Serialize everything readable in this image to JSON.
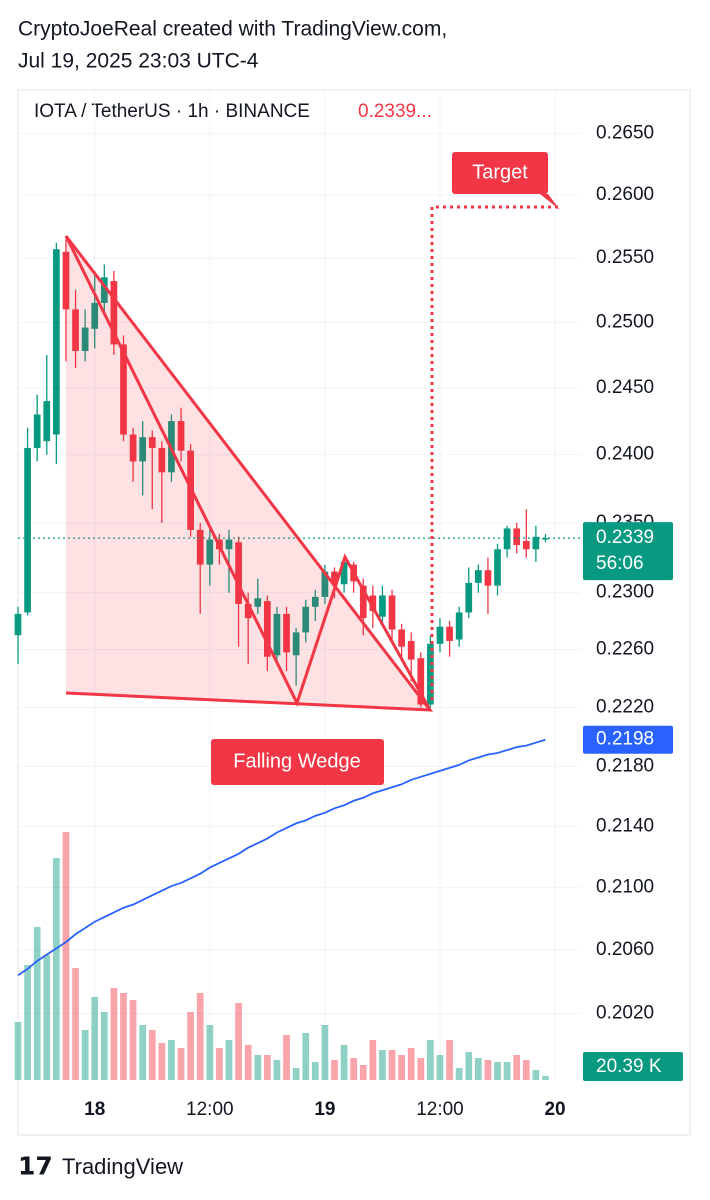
{
  "header": {
    "line1": "CryptoJoeReal created with TradingView.com,",
    "line2": "Jul 19, 2025 23:03 UTC-4"
  },
  "footer": {
    "brand": "TradingView"
  },
  "chart_data": {
    "type": "candlestick",
    "symbol": "IOTA / TetherUS · 1h · BINANCE",
    "header_price": "0.2339...",
    "countdown": "56:06",
    "log_scale": true,
    "up_color": "#089981",
    "down_color": "#f23645",
    "annotations": [
      "Target",
      "Falling Wedge"
    ],
    "xlim": [
      -8,
      50.6
    ],
    "xticks": [
      {
        "value": 0,
        "label": "18"
      },
      {
        "value": 12,
        "label": "12:00"
      },
      {
        "value": 24,
        "label": "19"
      },
      {
        "value": 36,
        "label": "12:00"
      },
      {
        "value": 48,
        "label": "20"
      }
    ],
    "ylim": [
      0.1979,
      0.2661
    ],
    "yticks": [
      {
        "value": 0.265,
        "label": "0.2650"
      },
      {
        "value": 0.26,
        "label": "0.2600"
      },
      {
        "value": 0.255,
        "label": "0.2550"
      },
      {
        "value": 0.25,
        "label": "0.2500"
      },
      {
        "value": 0.245,
        "label": "0.2450"
      },
      {
        "value": 0.24,
        "label": "0.2400"
      },
      {
        "value": 0.235,
        "label": "0.2350"
      },
      {
        "value": 0.23,
        "label": "0.2300"
      },
      {
        "value": 0.226,
        "label": "0.2260"
      },
      {
        "value": 0.222,
        "label": "0.2220"
      },
      {
        "value": 0.218,
        "label": "0.2180"
      },
      {
        "value": 0.214,
        "label": "0.2140"
      },
      {
        "value": 0.21,
        "label": "0.2100"
      },
      {
        "value": 0.206,
        "label": "0.2060"
      },
      {
        "value": 0.202,
        "label": "0.2020"
      }
    ],
    "x": [
      -8,
      -7,
      -6,
      -5,
      -4,
      -3,
      -2,
      -1,
      0,
      1,
      2,
      3,
      4,
      5,
      6,
      7,
      8,
      9,
      10,
      11,
      12,
      13,
      14,
      15,
      16,
      17,
      18,
      19,
      20,
      21,
      22,
      23,
      24,
      25,
      26,
      27,
      28,
      29,
      30,
      31,
      32,
      33,
      34,
      35,
      36,
      37,
      38,
      39,
      40,
      41,
      42,
      43,
      44,
      45,
      46,
      47
    ],
    "open": [
      0.227,
      0.2286,
      0.2405,
      0.241,
      0.2415,
      0.2555,
      0.251,
      0.2478,
      0.2495,
      0.2515,
      0.2532,
      0.2483,
      0.2415,
      0.2395,
      0.2413,
      0.2405,
      0.2387,
      0.2425,
      0.2403,
      0.2345,
      0.232,
      0.2338,
      0.2331,
      0.2336,
      0.2292,
      0.229,
      0.2294,
      0.2256,
      0.2285,
      0.2256,
      0.2272,
      0.229,
      0.2297,
      0.2315,
      0.2306,
      0.232,
      0.2305,
      0.2298,
      0.2283,
      0.2298,
      0.2274,
      0.2266,
      0.2254,
      0.2222,
      0.2264,
      0.2276,
      0.2267,
      0.2286,
      0.2307,
      0.2316,
      0.2305,
      0.2331,
      0.2346,
      0.2337,
      0.2331,
      0.2338
    ],
    "high": [
      0.229,
      0.242,
      0.2445,
      0.2475,
      0.2562,
      0.2565,
      0.2525,
      0.251,
      0.254,
      0.2545,
      0.254,
      0.249,
      0.242,
      0.2425,
      0.2418,
      0.241,
      0.243,
      0.2435,
      0.2408,
      0.235,
      0.2345,
      0.2342,
      0.2345,
      0.234,
      0.23,
      0.231,
      0.2298,
      0.229,
      0.229,
      0.2275,
      0.2295,
      0.2302,
      0.232,
      0.2318,
      0.2325,
      0.2322,
      0.231,
      0.2305,
      0.2305,
      0.2302,
      0.2278,
      0.2272,
      0.2258,
      0.227,
      0.2282,
      0.228,
      0.229,
      0.2318,
      0.232,
      0.2325,
      0.2335,
      0.2348,
      0.235,
      0.236,
      0.2348,
      0.2342
    ],
    "low": [
      0.225,
      0.2284,
      0.2395,
      0.24,
      0.2393,
      0.247,
      0.2465,
      0.247,
      0.248,
      0.2505,
      0.2475,
      0.241,
      0.238,
      0.237,
      0.236,
      0.235,
      0.238,
      0.2395,
      0.234,
      0.2285,
      0.2305,
      0.232,
      0.23,
      0.2262,
      0.225,
      0.2285,
      0.2245,
      0.225,
      0.2245,
      0.2235,
      0.2265,
      0.228,
      0.2292,
      0.2296,
      0.23,
      0.23,
      0.227,
      0.2275,
      0.2278,
      0.2266,
      0.2252,
      0.2238,
      0.222,
      0.222,
      0.2258,
      0.2255,
      0.2262,
      0.2282,
      0.23,
      0.2285,
      0.2298,
      0.2325,
      0.2328,
      0.2325,
      0.2322,
      0.2336
    ],
    "close": [
      0.2285,
      0.2405,
      0.243,
      0.244,
      0.2557,
      0.251,
      0.2478,
      0.2496,
      0.2515,
      0.2535,
      0.2483,
      0.2415,
      0.2395,
      0.2413,
      0.2405,
      0.2387,
      0.2425,
      0.2403,
      0.2345,
      0.232,
      0.2338,
      0.2331,
      0.2338,
      0.2292,
      0.2282,
      0.2296,
      0.2255,
      0.2285,
      0.2258,
      0.2272,
      0.229,
      0.2297,
      0.2315,
      0.2306,
      0.2322,
      0.2308,
      0.2282,
      0.2287,
      0.2298,
      0.2274,
      0.2262,
      0.2253,
      0.2222,
      0.2264,
      0.2276,
      0.2266,
      0.2286,
      0.2307,
      0.2316,
      0.2305,
      0.2331,
      0.2346,
      0.2334,
      0.2331,
      0.234,
      0.2339
    ],
    "volume": {
      "values": [
        290,
        575,
        765,
        625,
        1110,
        1240,
        560,
        250,
        415,
        340,
        460,
        435,
        400,
        275,
        250,
        185,
        200,
        160,
        340,
        435,
        275,
        160,
        200,
        385,
        175,
        125,
        125,
        100,
        225,
        60,
        235,
        90,
        275,
        100,
        175,
        110,
        75,
        200,
        150,
        150,
        125,
        160,
        110,
        200,
        125,
        200,
        60,
        140,
        110,
        100,
        90,
        90,
        125,
        100,
        50,
        20.39
      ],
      "value_labels": {
        "55": "20.39 K"
      }
    },
    "ma": {
      "color": "#2962ff",
      "values": [
        0.2044,
        0.2048,
        0.2053,
        0.2057,
        0.2061,
        0.2065,
        0.207,
        0.2074,
        0.2078,
        0.2081,
        0.2084,
        0.2087,
        0.2089,
        0.2092,
        0.2095,
        0.2098,
        0.2101,
        0.2103,
        0.2106,
        0.2109,
        0.2113,
        0.2116,
        0.2119,
        0.2122,
        0.2126,
        0.2129,
        0.2132,
        0.2136,
        0.2139,
        0.2142,
        0.2144,
        0.2147,
        0.2149,
        0.2152,
        0.2154,
        0.2157,
        0.2159,
        0.2162,
        0.2164,
        0.2166,
        0.2168,
        0.2171,
        0.2173,
        0.2175,
        0.2177,
        0.2179,
        0.2181,
        0.2184,
        0.2186,
        0.2188,
        0.2189,
        0.2191,
        0.2193,
        0.2194,
        0.2196,
        0.2198
      ]
    }
  }
}
